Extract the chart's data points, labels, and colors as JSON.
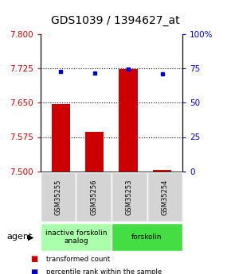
{
  "title": "GDS1039 / 1394627_at",
  "samples": [
    "GSM35255",
    "GSM35256",
    "GSM35253",
    "GSM35254"
  ],
  "bar_values": [
    7.648,
    7.587,
    7.724,
    7.503
  ],
  "bar_baseline": 7.5,
  "bar_color": "#cc0000",
  "dot_values": [
    73.0,
    71.5,
    74.5,
    71.0
  ],
  "dot_color": "#0000cc",
  "left_ylim": [
    7.5,
    7.8
  ],
  "right_ylim": [
    0,
    100
  ],
  "left_yticks": [
    7.5,
    7.575,
    7.65,
    7.725,
    7.8
  ],
  "right_yticks": [
    0,
    25,
    50,
    75,
    100
  ],
  "right_yticklabels": [
    "0",
    "25",
    "50",
    "75",
    "100%"
  ],
  "hlines": [
    7.725,
    7.65,
    7.575
  ],
  "agent_groups": [
    {
      "label": "inactive forskolin\nanalog",
      "indices": [
        0,
        1
      ],
      "color": "#aaffaa"
    },
    {
      "label": "forskolin",
      "indices": [
        2,
        3
      ],
      "color": "#44dd44"
    }
  ],
  "agent_label": "agent",
  "legend": [
    {
      "color": "#cc0000",
      "label": "transformed count"
    },
    {
      "color": "#0000cc",
      "label": "percentile rank within the sample"
    }
  ],
  "title_fontsize": 10,
  "tick_fontsize": 7.5,
  "left_tick_color": "#cc0000",
  "right_tick_color": "#0000cc"
}
